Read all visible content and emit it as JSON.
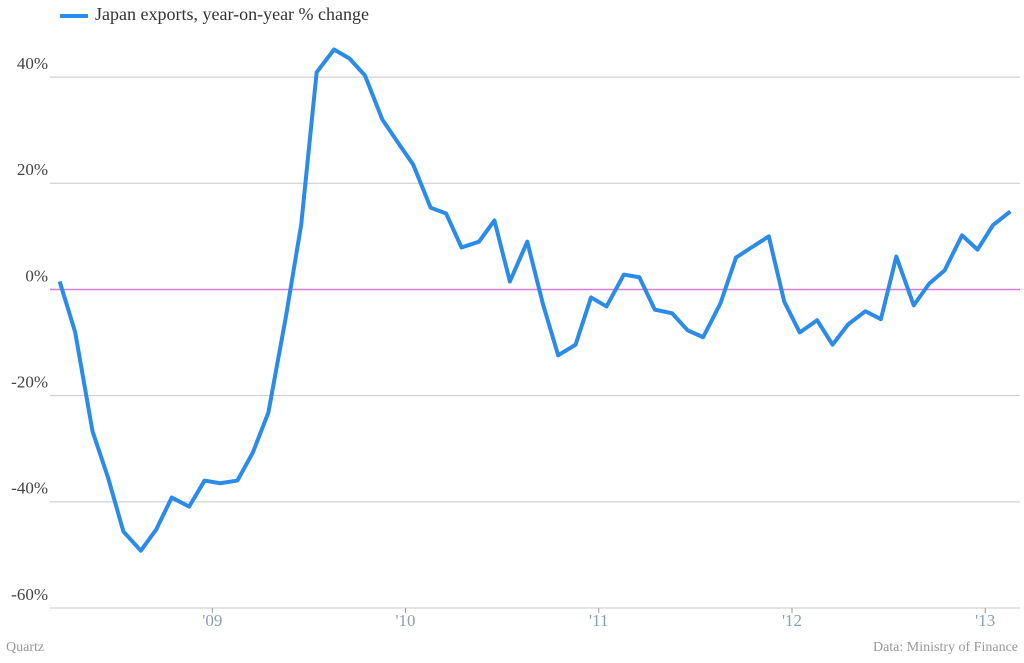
{
  "chart_data": {
    "type": "line",
    "x": [
      2008.21,
      2008.29,
      2008.38,
      2008.46,
      2008.54,
      2008.63,
      2008.71,
      2008.79,
      2008.88,
      2008.96,
      2009.04,
      2009.13,
      2009.21,
      2009.29,
      2009.38,
      2009.46,
      2009.54,
      2009.63,
      2009.71,
      2009.79,
      2009.88,
      2009.96,
      2010.04,
      2010.13,
      2010.21,
      2010.29,
      2010.38,
      2010.46,
      2010.54,
      2010.63,
      2010.71,
      2010.79,
      2010.88,
      2010.96,
      2011.04,
      2011.13,
      2011.21,
      2011.29,
      2011.38,
      2011.46,
      2011.54,
      2011.63,
      2011.71,
      2011.79,
      2011.88,
      2011.96,
      2012.04,
      2012.13,
      2012.21,
      2012.29,
      2012.38,
      2012.46,
      2012.54,
      2012.63,
      2012.71,
      2012.79,
      2012.88,
      2012.96,
      2013.04,
      2013.13
    ],
    "series": [
      {
        "name": "Japan exports, year-on-year % change",
        "color": "#2b8be8",
        "values": [
          1.5,
          -8,
          -26.7,
          -35.4,
          -45.6,
          -49.2,
          -45.2,
          -39.2,
          -40.9,
          -36,
          -36.5,
          -36,
          -30.7,
          -23.2,
          -5.3,
          12.2,
          40.9,
          45.2,
          43.5,
          40.3,
          32,
          27.7,
          23.5,
          15.4,
          14.3,
          7.9,
          9,
          13,
          1.5,
          9,
          -2.6,
          -12.4,
          -10.4,
          -1.5,
          -3.2,
          2.8,
          2.3,
          -3.8,
          -4.5,
          -7.7,
          -9,
          -2.6,
          6,
          7.9,
          10,
          -2.3,
          -8.1,
          -5.8,
          -10.4,
          -6.6,
          -4.1,
          -5.6,
          6.2,
          -3,
          1.1,
          3.6,
          10.2,
          7.5,
          12.1,
          14.7
        ]
      }
    ],
    "xlim": [
      2008.16,
      2013.18
    ],
    "xticks": [
      {
        "value": 2009,
        "label": "'09"
      },
      {
        "value": 2010,
        "label": "'10"
      },
      {
        "value": 2011,
        "label": "'11"
      },
      {
        "value": 2012,
        "label": "'12"
      },
      {
        "value": 2013,
        "label": "'13"
      }
    ],
    "ylim": [
      -60,
      50
    ],
    "yticks": [
      {
        "value": -60,
        "label": "-60%"
      },
      {
        "value": -40,
        "label": "-40%"
      },
      {
        "value": -20,
        "label": "-20%"
      },
      {
        "value": 0,
        "label": "0%"
      },
      {
        "value": 20,
        "label": "20%"
      },
      {
        "value": 40,
        "label": "40%"
      }
    ],
    "grid": true,
    "grid_color": "#c8c8c8",
    "zero_line_color": "#d580d5",
    "legend": "top-left",
    "source": "Data: Ministry of Finance",
    "credit": "Quartz"
  }
}
